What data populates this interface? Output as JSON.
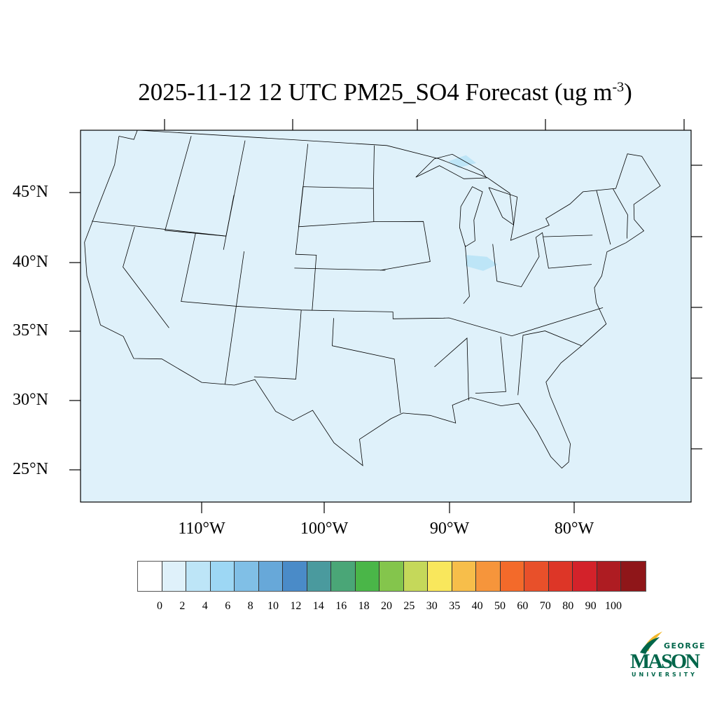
{
  "title": {
    "main": "2025-11-12 12 UTC PM25_SO4 Forecast (ug m",
    "sup": "-3",
    "end": ")"
  },
  "lat_labels": [
    "45°N",
    "40°N",
    "35°N",
    "30°N",
    "25°N"
  ],
  "lon_labels": [
    "110°W",
    "100°W",
    "90°W",
    "80°W"
  ],
  "colorbar": {
    "labels": [
      "0",
      "2",
      "4",
      "6",
      "8",
      "10",
      "12",
      "14",
      "16",
      "18",
      "20",
      "25",
      "30",
      "35",
      "40",
      "50",
      "60",
      "70",
      "80",
      "90",
      "100"
    ],
    "colors": [
      "#ffffff",
      "#dff1fa",
      "#bde5f7",
      "#9dd7f4",
      "#80bfe6",
      "#67a8d9",
      "#4a8bc8",
      "#4a9a9e",
      "#4aa677",
      "#4ab648",
      "#84c54c",
      "#c5d85a",
      "#f9e75c",
      "#f7be4a",
      "#f6953b",
      "#f36a2a",
      "#e8502a",
      "#dd3627",
      "#d3222a",
      "#ae1c22",
      "#8f1619"
    ]
  },
  "map": {
    "background_value_color": "#dff1fa",
    "elevated_patch_color": "#bde5f7"
  },
  "logo": {
    "line1": "GEORGE",
    "line2": "MASON",
    "line3": "UNIVERSITY",
    "green": "#00664a",
    "gold": "#f2b82a"
  }
}
